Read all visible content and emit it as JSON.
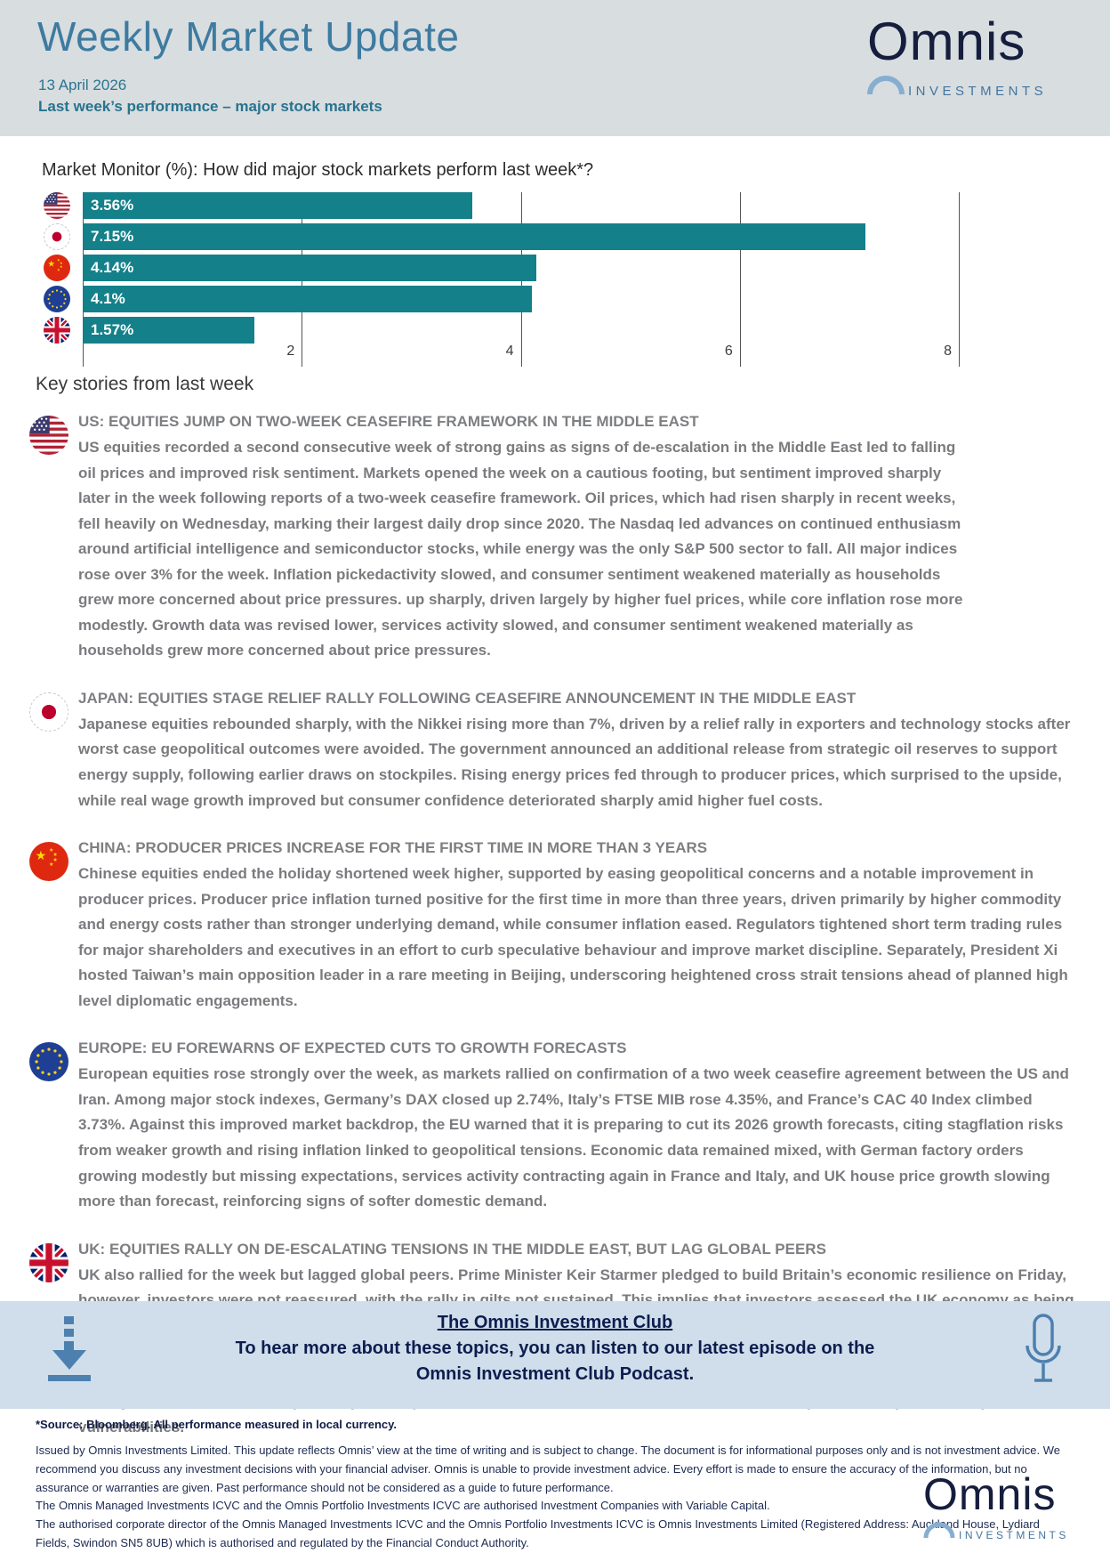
{
  "header": {
    "title": "Weekly Market Update",
    "date": "13 April 2026",
    "subtitle": "Last week’s performance – major stock markets",
    "logo_name": "Omnis",
    "logo_tagline": "INVESTMENTS"
  },
  "chart_data": {
    "type": "bar",
    "orientation": "horizontal",
    "title": "Market Monitor (%): How did major stock markets perform last week*?",
    "categories": [
      "US",
      "Japan",
      "China",
      "EU",
      "UK"
    ],
    "values": [
      3.56,
      7.15,
      4.14,
      4.1,
      1.57
    ],
    "labels": [
      "3.56%",
      "7.15%",
      "4.14%",
      "4.1%",
      "1.57%"
    ],
    "xlim": [
      0,
      8
    ],
    "xticks": [
      "2",
      "4",
      "6",
      "8"
    ],
    "bar_color": "#14808a",
    "grid": "vertical gridlines at 2,4,6,8"
  },
  "stories": {
    "heading": "Key stories from last week",
    "items": [
      {
        "country": "US",
        "headline": "US: EQUITIES JUMP ON TWO-WEEK CEASEFIRE FRAMEWORK IN THE MIDDLE EAST",
        "body": "US equities recorded a second consecutive week of strong gains as signs of de-escalation in the Middle East led to falling oil prices and improved risk sentiment. Markets opened the week on a cautious footing, but sentiment improved sharply later in the week following reports of a two-week ceasefire framework. Oil prices, which had risen sharply in recent weeks, fell heavily on Wednesday, marking their largest daily drop since 2020. The Nasdaq led advances on continued enthusiasm around artificial intelligence and semiconductor stocks, while energy was the only S&P 500 sector to fall. All major indices rose over 3% for the week. Inflation pickedactivity slowed, and consumer sentiment weakened materially as households grew more concerned about price pressures. up sharply, driven largely by higher fuel prices, while core inflation rose more modestly. Growth data was revised lower, services activity slowed, and consumer sentiment weakened materially as households grew more concerned about price pressures."
      },
      {
        "country": "Japan",
        "headline": "JAPAN: EQUITIES STAGE RELIEF RALLY FOLLOWING CEASEFIRE ANNOUNCEMENT IN THE MIDDLE EAST",
        "body": "Japanese equities rebounded sharply, with the Nikkei rising more than 7%, driven by a relief rally in exporters and technology stocks after worst case geopolitical outcomes were avoided. The government announced an additional release from strategic oil reserves to support energy supply, following earlier draws on stockpiles. Rising energy prices fed through to producer prices, which surprised to the upside, while real wage growth improved but consumer confidence deteriorated sharply amid higher fuel costs."
      },
      {
        "country": "China",
        "headline": "CHINA: PRODUCER PRICES INCREASE FOR THE FIRST TIME IN MORE THAN 3 YEARS",
        "body": "Chinese equities ended the holiday shortened week higher, supported by easing geopolitical concerns and a notable improvement in producer prices. Producer price inflation turned positive for the first time in more than three years, driven primarily by higher commodity and energy costs rather than stronger underlying demand, while consumer inflation eased. Regulators tightened short term trading rules for major shareholders and executives in an effort to curb speculative behaviour and improve market discipline. Separately, President Xi hosted Taiwan’s main opposition leader in a rare meeting in Beijing, underscoring heightened cross strait tensions ahead of planned high level diplomatic engagements."
      },
      {
        "country": "Europe",
        "headline": "EUROPE: EU FOREWARNS OF EXPECTED CUTS TO GROWTH FORECASTS",
        "body": "European equities rose strongly over the week, as markets rallied on confirmation of a two week ceasefire agreement between the US and Iran. Among major stock indexes, Germany’s DAX closed up 2.74%, Italy’s FTSE MIB rose 4.35%, and France’s CAC 40 Index climbed 3.73%. Against this improved market backdrop, the EU warned that it is preparing to cut its 2026 growth forecasts, citing stagflation risks from weaker growth and rising inflation linked to geopolitical tensions. Economic data remained mixed, with German factory orders growing modestly but missing expectations, services activity contracting again in France and Italy, and UK house price growth slowing more than forecast, reinforcing signs of softer domestic demand."
      },
      {
        "country": "UK",
        "headline": "UK: EQUITIES RALLY ON DE-ESCALATING TENSIONS IN THE MIDDLE EAST, BUT LAG GLOBAL PEERS",
        "body": "UK also rallied for the week but lagged global peers. Prime Minister Keir Starmer pledged to build Britain’s economic resilience on Friday, however, investors were not reassured, with the rally in gilts not sustained. This implies that investors assessed the UK economy as being most exposed to rising energy prices, as a result of the war in the Middle East. UK house prices increased by 0.8% year on year in March 2026, according to the Halifax House Price Index. This marked a slowdown from February’s 1.2% rise and came in below expectations for 1.5% growth. In separate news, UK financial regulators are holding discussions with the government’s main cyber security watchdog and the big banks to assess risks posed by Anthropic’s latest AI model. The model has an advanced ability to detect cyber security vulnerabilities."
      }
    ]
  },
  "banner": {
    "club_title": "The Omnis Investment Club",
    "line2": "To hear more about these topics, you can listen to our latest episode on the",
    "line3": "Omnis Investment Club Podcast.",
    "background": "#cfdeea",
    "icon_color": "#4d80af"
  },
  "footnote": "*Source: Bloomberg. All performance measured in local currency.",
  "disclaimer": {
    "p1": "Issued by Omnis Investments Limited. This update reflects Omnis’ view at the time of writing and is subject to change. The document is for informational purposes only and is not investment advice. We recommend you discuss any investment decisions with your financial adviser. Omnis is unable to provide investment advice. Every effort is made to ensure the accuracy of the information, but no assurance or warranties are given. Past performance should not be considered as a guide to future performance.",
    "p2": "The Omnis Managed Investments ICVC and the Omnis Portfolio Investments ICVC are authorised Investment Companies with Variable Capital.",
    "p3": "The authorised corporate director of the Omnis Managed Investments ICVC and the Omnis Portfolio Investments ICVC is Omnis Investments Limited (Registered Address: Auckland House, Lydiard Fields, Swindon SN5 8UB) which is authorised and regulated by the Financial Conduct Authority."
  },
  "footer_logo": {
    "logo_name": "Omnis",
    "logo_tagline": "INVESTMENTS"
  }
}
